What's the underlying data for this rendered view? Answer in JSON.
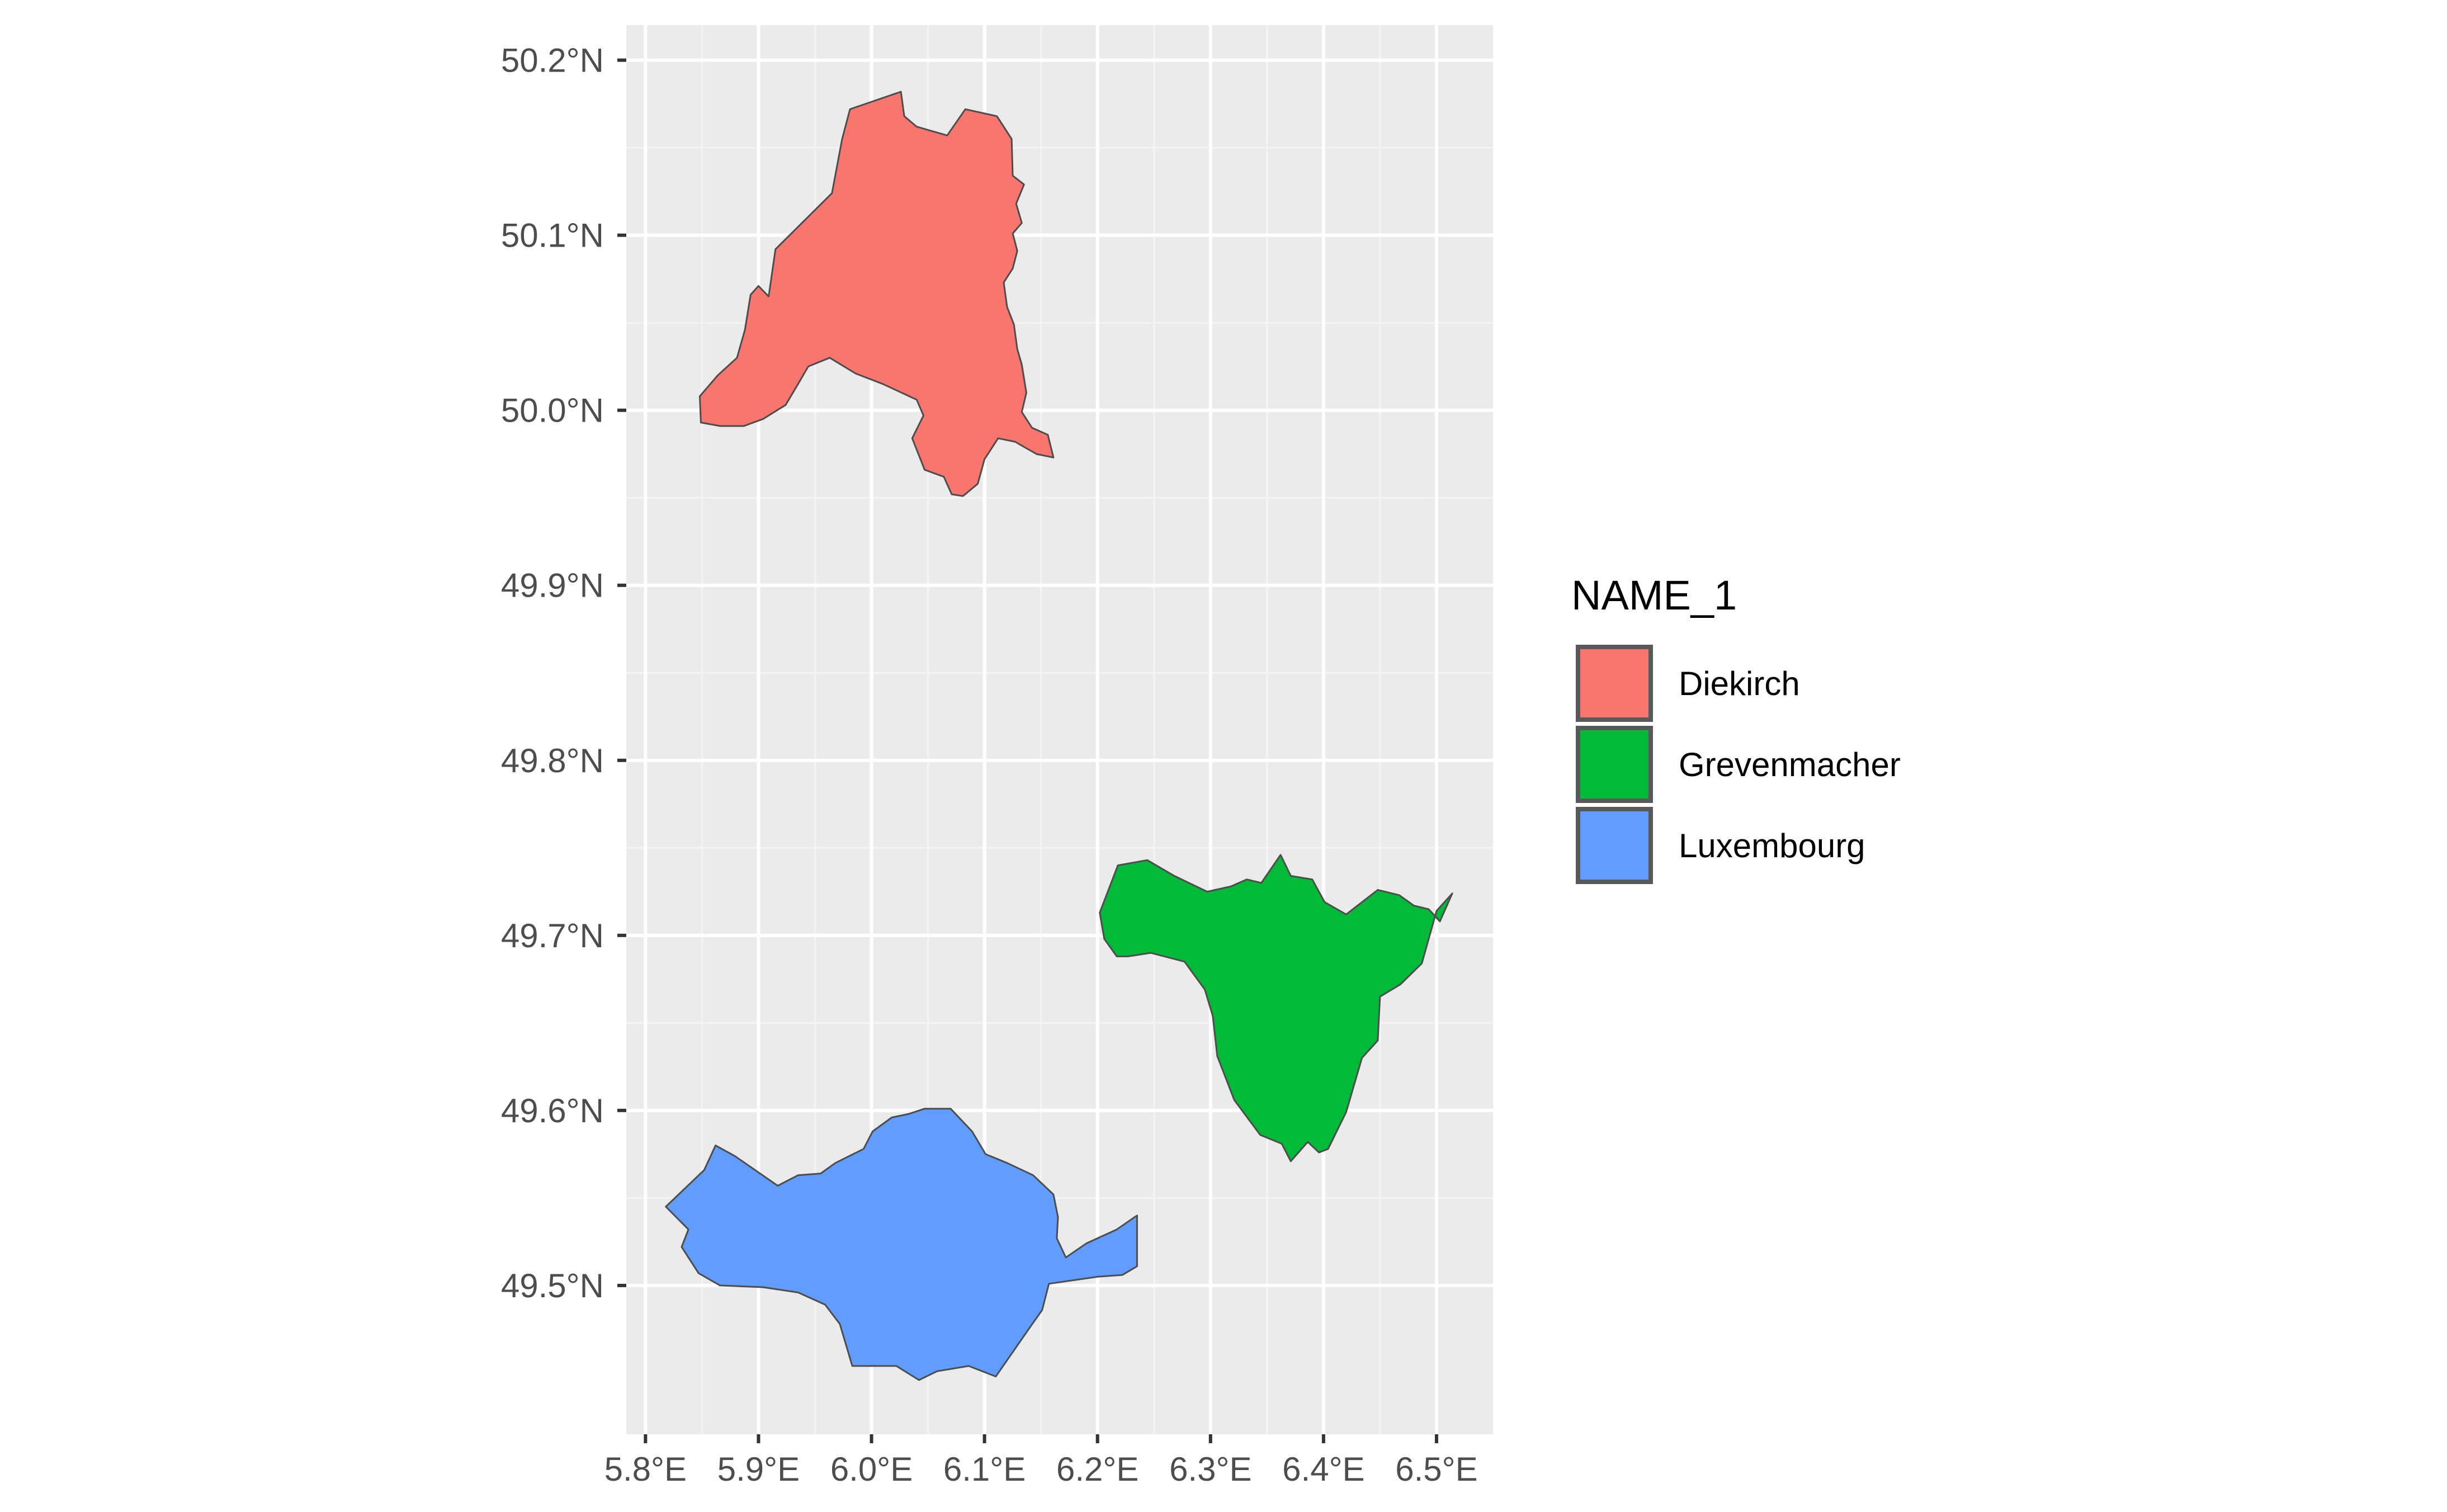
{
  "chart_data": {
    "type": "map",
    "x_ticks": [
      "5.8°E",
      "5.9°E",
      "6.0°E",
      "6.1°E",
      "6.2°E",
      "6.3°E",
      "6.4°E",
      "6.5°E"
    ],
    "y_ticks": [
      "49.5°N",
      "49.6°N",
      "49.7°N",
      "49.8°N",
      "49.9°N",
      "50.0°N",
      "50.1°N",
      "50.2°N"
    ],
    "x_values": [
      5.8,
      5.9,
      6.0,
      6.1,
      6.2,
      6.3,
      6.4,
      6.5
    ],
    "y_values": [
      49.5,
      49.6,
      49.7,
      49.8,
      49.9,
      50.0,
      50.1,
      50.2
    ],
    "xlim": [
      5.783,
      6.55
    ],
    "ylim": [
      49.415,
      50.22
    ],
    "grid": true,
    "legend": {
      "title": "NAME_1",
      "placement": "right",
      "entries": [
        {
          "label": "Diekirch",
          "color": "#F8766D"
        },
        {
          "label": "Grevenmacher",
          "color": "#00BA38"
        },
        {
          "label": "Luxembourg",
          "color": "#619CFF"
        }
      ]
    },
    "regions": [
      {
        "name": "Diekirch",
        "color": "#F8766D",
        "lon_lat": [
          [
            5.909,
            50.065
          ],
          [
            5.915,
            50.092
          ],
          [
            5.965,
            50.124
          ],
          [
            5.974,
            50.155
          ],
          [
            5.981,
            50.172
          ],
          [
            6.026,
            50.182
          ],
          [
            6.029,
            50.168
          ],
          [
            6.04,
            50.162
          ],
          [
            6.067,
            50.157
          ],
          [
            6.083,
            50.172
          ],
          [
            6.111,
            50.168
          ],
          [
            6.124,
            50.155
          ],
          [
            6.125,
            50.134
          ],
          [
            6.135,
            50.129
          ],
          [
            6.128,
            50.118
          ],
          [
            6.133,
            50.107
          ],
          [
            6.125,
            50.101
          ],
          [
            6.129,
            50.091
          ],
          [
            6.125,
            50.081
          ],
          [
            6.117,
            50.073
          ],
          [
            6.12,
            50.059
          ],
          [
            6.126,
            50.049
          ],
          [
            6.129,
            50.035
          ],
          [
            6.133,
            50.026
          ],
          [
            6.137,
            50.01
          ],
          [
            6.133,
            49.999
          ],
          [
            6.142,
            49.99
          ],
          [
            6.156,
            49.986
          ],
          [
            6.161,
            49.973
          ],
          [
            6.146,
            49.975
          ],
          [
            6.127,
            49.982
          ],
          [
            6.112,
            49.984
          ],
          [
            6.1,
            49.972
          ],
          [
            6.094,
            49.958
          ],
          [
            6.081,
            49.951
          ],
          [
            6.071,
            49.952
          ],
          [
            6.064,
            49.962
          ],
          [
            6.047,
            49.966
          ],
          [
            6.036,
            49.984
          ],
          [
            6.046,
            49.997
          ],
          [
            6.04,
            50.006
          ],
          [
            6.01,
            50.015
          ],
          [
            5.986,
            50.021
          ],
          [
            5.963,
            50.03
          ],
          [
            5.944,
            50.025
          ],
          [
            5.935,
            50.015
          ],
          [
            5.924,
            50.003
          ],
          [
            5.904,
            49.995
          ],
          [
            5.887,
            49.991
          ],
          [
            5.866,
            49.991
          ],
          [
            5.849,
            49.993
          ],
          [
            5.848,
            50.008
          ],
          [
            5.864,
            50.02
          ],
          [
            5.881,
            50.03
          ],
          [
            5.888,
            50.046
          ],
          [
            5.893,
            50.066
          ],
          [
            5.9,
            50.071
          ]
        ]
      },
      {
        "name": "Grevenmacher",
        "color": "#00BA38",
        "lon_lat": [
          [
            6.217,
            49.688
          ],
          [
            6.206,
            49.698
          ],
          [
            6.202,
            49.713
          ],
          [
            6.218,
            49.74
          ],
          [
            6.244,
            49.743
          ],
          [
            6.268,
            49.734
          ],
          [
            6.297,
            49.725
          ],
          [
            6.318,
            49.728
          ],
          [
            6.332,
            49.732
          ],
          [
            6.345,
            49.73
          ],
          [
            6.362,
            49.746
          ],
          [
            6.371,
            49.734
          ],
          [
            6.39,
            49.732
          ],
          [
            6.401,
            49.719
          ],
          [
            6.42,
            49.712
          ],
          [
            6.448,
            49.726
          ],
          [
            6.467,
            49.723
          ],
          [
            6.48,
            49.717
          ],
          [
            6.493,
            49.715
          ],
          [
            6.503,
            49.708
          ],
          [
            6.514,
            49.724
          ],
          [
            6.5,
            49.714
          ],
          [
            6.487,
            49.684
          ],
          [
            6.468,
            49.672
          ],
          [
            6.45,
            49.665
          ],
          [
            6.448,
            49.64
          ],
          [
            6.434,
            49.63
          ],
          [
            6.42,
            49.599
          ],
          [
            6.404,
            49.578
          ],
          [
            6.396,
            49.576
          ],
          [
            6.386,
            49.582
          ],
          [
            6.371,
            49.571
          ],
          [
            6.363,
            49.581
          ],
          [
            6.344,
            49.586
          ],
          [
            6.321,
            49.606
          ],
          [
            6.306,
            49.631
          ],
          [
            6.302,
            49.654
          ],
          [
            6.295,
            49.669
          ],
          [
            6.277,
            49.685
          ],
          [
            6.247,
            49.69
          ],
          [
            6.227,
            49.688
          ]
        ]
      },
      {
        "name": "Luxembourg",
        "color": "#619CFF",
        "lon_lat": [
          [
            5.818,
            49.545
          ],
          [
            5.852,
            49.566
          ],
          [
            5.862,
            49.58
          ],
          [
            5.879,
            49.574
          ],
          [
            5.917,
            49.557
          ],
          [
            5.935,
            49.563
          ],
          [
            5.955,
            49.564
          ],
          [
            5.968,
            49.57
          ],
          [
            5.993,
            49.578
          ],
          [
            6.001,
            49.588
          ],
          [
            6.018,
            49.596
          ],
          [
            6.033,
            49.598
          ],
          [
            6.047,
            49.601
          ],
          [
            6.07,
            49.601
          ],
          [
            6.089,
            49.588
          ],
          [
            6.101,
            49.575
          ],
          [
            6.12,
            49.57
          ],
          [
            6.143,
            49.563
          ],
          [
            6.161,
            49.552
          ],
          [
            6.165,
            49.539
          ],
          [
            6.164,
            49.527
          ],
          [
            6.172,
            49.516
          ],
          [
            6.19,
            49.524
          ],
          [
            6.217,
            49.532
          ],
          [
            6.235,
            49.54
          ],
          [
            6.235,
            49.511
          ],
          [
            6.222,
            49.506
          ],
          [
            6.2,
            49.505
          ],
          [
            6.157,
            49.501
          ],
          [
            6.151,
            49.486
          ],
          [
            6.139,
            49.475
          ],
          [
            6.11,
            49.448
          ],
          [
            6.086,
            49.454
          ],
          [
            6.058,
            49.451
          ],
          [
            6.042,
            49.446
          ],
          [
            6.022,
            49.454
          ],
          [
            5.983,
            49.454
          ],
          [
            5.972,
            49.478
          ],
          [
            5.959,
            49.489
          ],
          [
            5.935,
            49.496
          ],
          [
            5.904,
            49.499
          ],
          [
            5.866,
            49.5
          ],
          [
            5.847,
            49.507
          ],
          [
            5.832,
            49.522
          ],
          [
            5.838,
            49.532
          ]
        ]
      }
    ]
  }
}
